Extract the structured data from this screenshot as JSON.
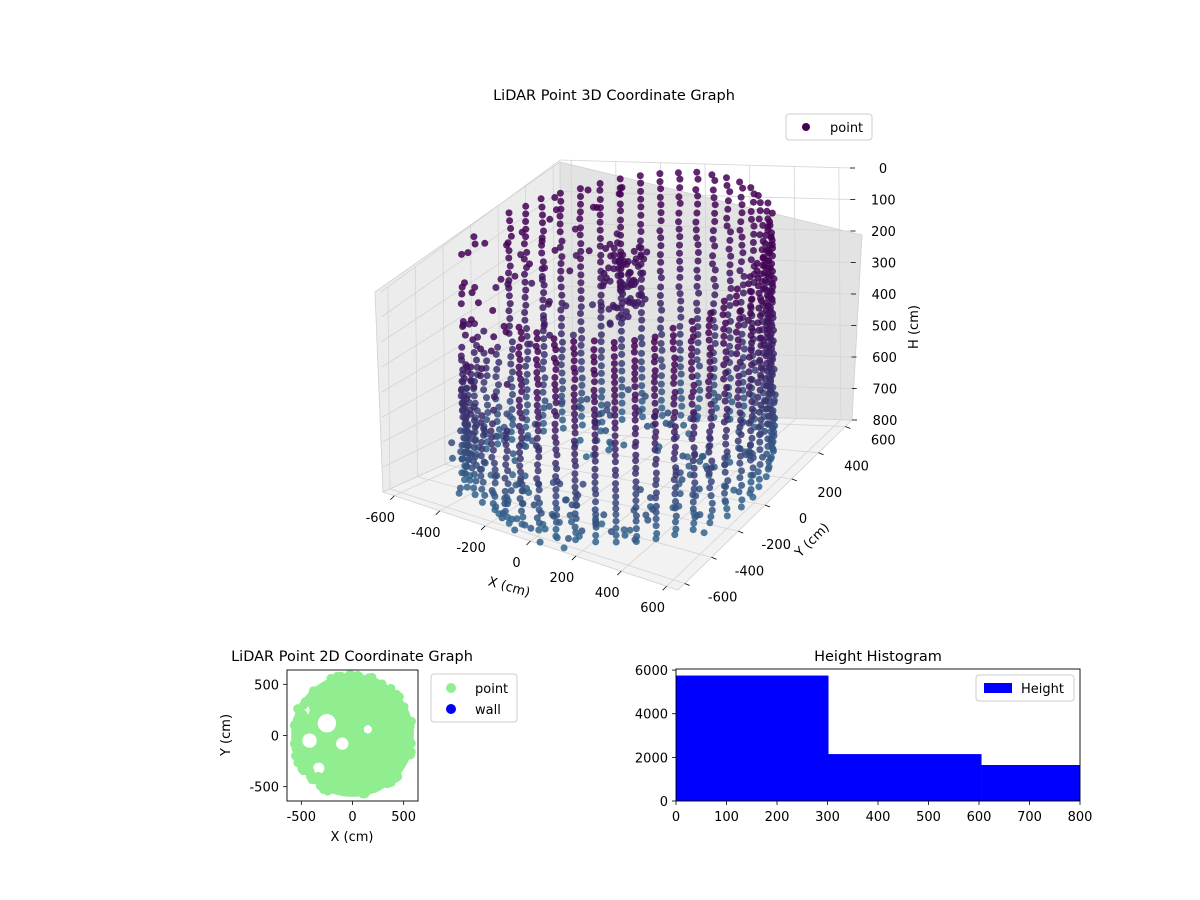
{
  "chart_data": [
    {
      "type": "scatter",
      "projection": "3d",
      "title": "LiDAR Point 3D Coordinate Graph",
      "xlabel": "X (cm)",
      "ylabel": "Y (cm)",
      "zlabel": "H (cm)",
      "x_ticks": [
        -600,
        -400,
        -200,
        0,
        200,
        400,
        600
      ],
      "y_ticks": [
        -600,
        -400,
        -200,
        0,
        200,
        400,
        600
      ],
      "z_ticks": [
        0,
        100,
        200,
        300,
        400,
        500,
        600,
        700,
        800
      ],
      "xlim": [
        -650,
        650
      ],
      "ylim": [
        -650,
        650
      ],
      "zlim": [
        0,
        800
      ],
      "z_inverted": true,
      "grid": true,
      "colormap": "viridis",
      "legend": {
        "entries": [
          {
            "label": "point",
            "color": "#440154"
          }
        ],
        "position": "top-right"
      },
      "series": [
        {
          "name": "point",
          "shape": "ring of vertical point columns, radius ~600 cm, height 0-800 cm, with scattered outliers near the floor and in the upper-left region"
        }
      ]
    },
    {
      "type": "scatter",
      "title": "LiDAR Point 2D Coordinate Graph",
      "xlabel": "X (cm)",
      "ylabel": "Y (cm)",
      "x_ticks": [
        -500,
        0,
        500
      ],
      "y_ticks": [
        -500,
        0,
        500
      ],
      "xlim": [
        -640,
        640
      ],
      "ylim": [
        -640,
        640
      ],
      "legend": {
        "entries": [
          {
            "label": "point",
            "color": "#90ee90"
          },
          {
            "label": "wall",
            "color": "#0000ff"
          }
        ],
        "position": "outside-right"
      },
      "series": [
        {
          "name": "point",
          "color": "#90ee90",
          "shape": "filled disc, radius ~600 cm, with white gaps in the left-centre region"
        },
        {
          "name": "wall",
          "color": "#0000ff",
          "points": []
        }
      ]
    },
    {
      "type": "bar",
      "subtype": "histogram",
      "title": "Height Histogram",
      "bins": [
        [
          0,
          302
        ],
        [
          302,
          605
        ],
        [
          605,
          800
        ]
      ],
      "values": [
        5750,
        2150,
        1650
      ],
      "color": "#0000ff",
      "x_ticks": [
        0,
        100,
        200,
        300,
        400,
        500,
        600,
        700,
        800
      ],
      "y_ticks": [
        0,
        2000,
        4000,
        6000
      ],
      "xlim": [
        0,
        800
      ],
      "ylim": [
        0,
        6050
      ],
      "legend": {
        "entries": [
          {
            "label": "Height",
            "color": "#0000ff"
          }
        ],
        "position": "top-right"
      }
    }
  ]
}
